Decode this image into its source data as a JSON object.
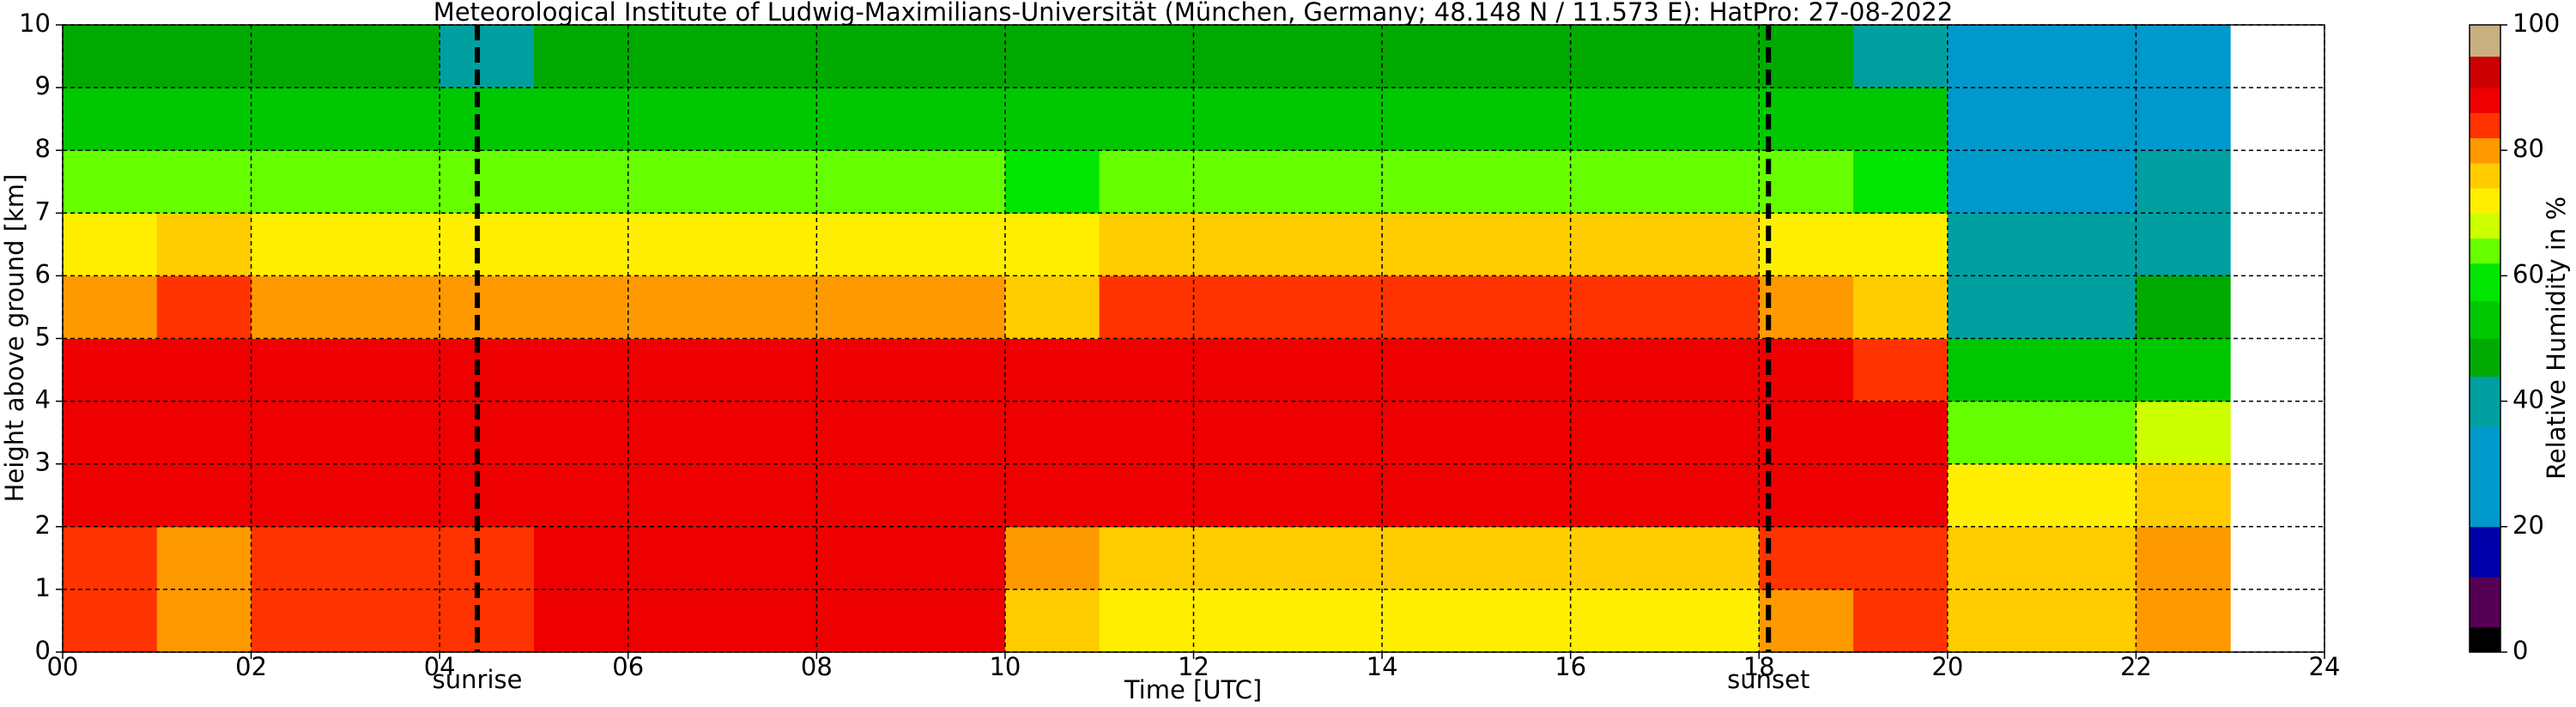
{
  "chart_data": {
    "type": "heatmap",
    "title": "Meteorological Institute of Ludwig-Maximilians-Universität (München, Germany; 48.148 N / 11.573 E):    HatPro: 27-08-2022",
    "xlabel": "Time [UTC]",
    "ylabel": "Height above ground [km]",
    "colorbar_label": "Relative Humidity in %",
    "xlim": [
      0,
      24
    ],
    "xticks": [
      {
        "value": 0,
        "label": "00"
      },
      {
        "value": 2,
        "label": "02"
      },
      {
        "value": 4,
        "label": "04"
      },
      {
        "value": 6,
        "label": "06"
      },
      {
        "value": 8,
        "label": "08"
      },
      10,
      12,
      14,
      16,
      18,
      20,
      22,
      24
    ],
    "ylim": [
      0,
      10
    ],
    "yticks": [
      0,
      1,
      2,
      3,
      4,
      5,
      6,
      7,
      8,
      9,
      10
    ],
    "grid": true,
    "annotations": [
      {
        "x": 4.4,
        "label": "sunrise"
      },
      {
        "x": 18.1,
        "label": "sunset"
      }
    ],
    "x_edges": [
      0,
      1,
      2,
      3,
      4,
      5,
      6,
      7,
      8,
      9,
      10,
      11,
      12,
      13,
      14,
      15,
      16,
      17,
      18,
      19,
      20,
      21,
      22,
      23
    ],
    "y_edges": [
      0,
      1,
      2,
      3,
      4,
      5,
      6,
      7,
      8,
      9,
      10
    ],
    "z": [
      [
        85,
        85,
        88,
        88,
        88,
        80,
        72,
        62,
        50,
        45
      ],
      [
        80,
        78,
        88,
        88,
        88,
        82,
        74,
        64,
        52,
        45
      ],
      [
        84,
        82,
        88,
        88,
        88,
        80,
        72,
        62,
        50,
        45
      ],
      [
        84,
        82,
        88,
        88,
        88,
        80,
        72,
        62,
        50,
        45
      ],
      [
        84,
        84,
        88,
        88,
        86,
        80,
        72,
        62,
        52,
        42
      ],
      [
        86,
        86,
        88,
        88,
        88,
        80,
        72,
        62,
        52,
        46
      ],
      [
        86,
        86,
        88,
        88,
        88,
        80,
        72,
        62,
        52,
        46
      ],
      [
        86,
        86,
        88,
        88,
        88,
        80,
        72,
        62,
        52,
        46
      ],
      [
        86,
        86,
        88,
        88,
        88,
        80,
        72,
        62,
        52,
        46
      ],
      [
        86,
        86,
        88,
        88,
        88,
        80,
        72,
        62,
        52,
        46
      ],
      [
        75,
        78,
        86,
        88,
        86,
        75,
        70,
        60,
        50,
        44
      ],
      [
        72,
        76,
        86,
        88,
        86,
        82,
        74,
        64,
        52,
        46
      ],
      [
        72,
        76,
        86,
        88,
        86,
        82,
        74,
        64,
        52,
        46
      ],
      [
        72,
        76,
        86,
        88,
        86,
        82,
        74,
        64,
        52,
        46
      ],
      [
        72,
        76,
        86,
        88,
        86,
        82,
        74,
        64,
        52,
        46
      ],
      [
        72,
        76,
        86,
        88,
        86,
        82,
        74,
        64,
        52,
        46
      ],
      [
        72,
        76,
        86,
        88,
        86,
        82,
        74,
        64,
        52,
        46
      ],
      [
        72,
        76,
        86,
        88,
        86,
        82,
        74,
        64,
        52,
        46
      ],
      [
        80,
        82,
        88,
        88,
        86,
        78,
        72,
        62,
        50,
        44
      ],
      [
        85,
        84,
        88,
        86,
        84,
        76,
        70,
        60,
        50,
        42
      ],
      [
        74,
        76,
        72,
        62,
        52,
        42,
        38,
        30,
        30,
        30
      ],
      [
        74,
        76,
        72,
        62,
        52,
        42,
        38,
        30,
        30,
        30
      ],
      [
        78,
        80,
        76,
        66,
        54,
        46,
        40,
        36,
        32,
        30
      ]
    ],
    "colorbar": {
      "bounds": [
        0,
        4,
        12,
        20,
        36,
        44,
        50,
        56,
        62,
        66,
        70,
        74,
        78,
        82,
        86,
        90,
        95,
        100
      ],
      "colors": [
        "#000000",
        "#550055",
        "#0000aa",
        "#0099cc",
        "#00a0a0",
        "#00aa00",
        "#00c800",
        "#00e600",
        "#66ff00",
        "#ccff00",
        "#ffee00",
        "#ffcc00",
        "#ff9900",
        "#ff3300",
        "#ee0000",
        "#cc0000",
        "#c8b080"
      ],
      "ticks": [
        0,
        20,
        40,
        60,
        80,
        100
      ]
    }
  }
}
